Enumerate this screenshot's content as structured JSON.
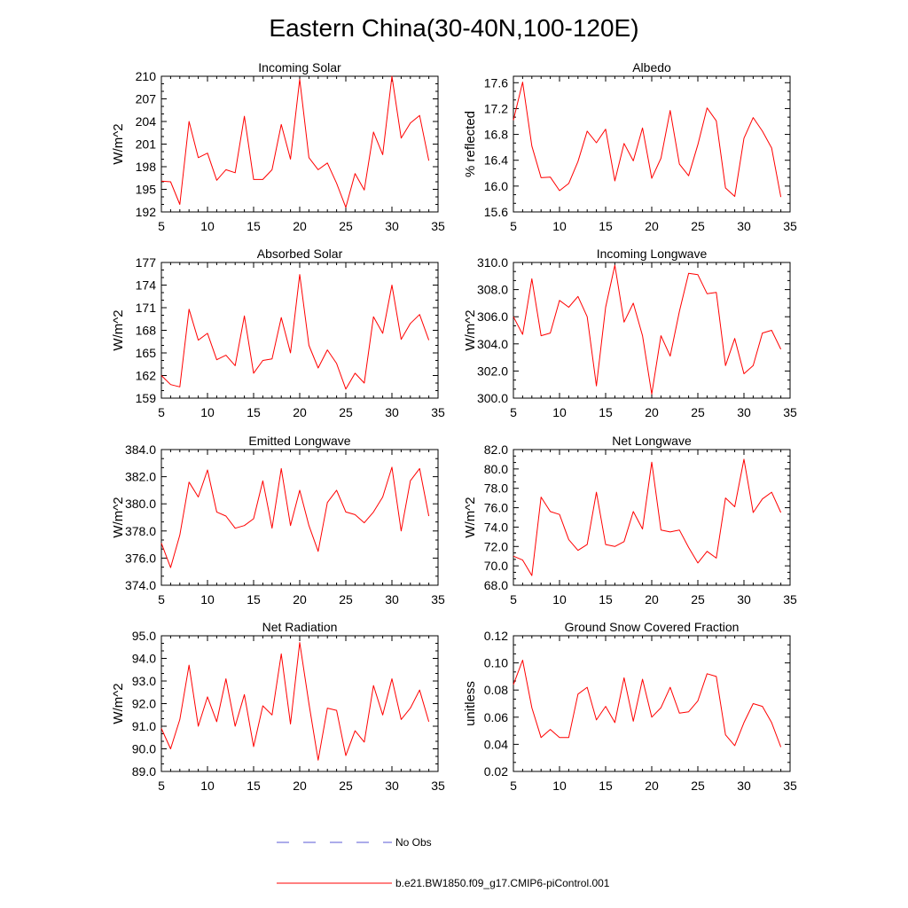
{
  "figure": {
    "title": "Eastern China(30-40N,100-120E)"
  },
  "legend": [
    {
      "label": "No Obs",
      "color": "#5a5ad6",
      "dash": true
    },
    {
      "label": "b.e21.BW1850.f09_g17.CMIP6-piControl.001",
      "color": "#ff0000",
      "dash": false
    }
  ],
  "chart_data": [
    {
      "type": "line",
      "title": "Incoming Solar",
      "ylabel": "W/m^2",
      "xlabel": "",
      "xlim": [
        5,
        35
      ],
      "ylim": [
        192,
        210
      ],
      "xticks": [
        5,
        10,
        15,
        20,
        25,
        30,
        35
      ],
      "yticks": [
        "192",
        "195",
        "198",
        "201",
        "204",
        "207",
        "210"
      ],
      "series": [
        {
          "name": "b.e21.BW1850.f09_g17.CMIP6-piControl.001",
          "x": [
            5,
            6,
            7,
            8,
            9,
            10,
            11,
            12,
            13,
            14,
            15,
            16,
            17,
            18,
            19,
            20,
            21,
            22,
            23,
            24,
            25,
            26,
            27,
            28,
            29,
            30,
            31,
            32,
            33,
            34
          ],
          "values": [
            196.1,
            196.0,
            193.0,
            204.0,
            199.2,
            199.8,
            196.2,
            197.6,
            197.2,
            204.7,
            196.3,
            196.3,
            197.6,
            203.6,
            199.0,
            209.6,
            199.2,
            197.6,
            198.5,
            195.8,
            192.6,
            197.1,
            194.9,
            202.6,
            199.6,
            210.0,
            201.8,
            203.8,
            204.8,
            198.8
          ]
        }
      ]
    },
    {
      "type": "line",
      "title": "Albedo",
      "ylabel": "% reflected",
      "xlabel": "",
      "xlim": [
        5,
        35
      ],
      "ylim": [
        15.6,
        17.7
      ],
      "xticks": [
        5,
        10,
        15,
        20,
        25,
        30,
        35
      ],
      "yticks": [
        "15.6",
        "16.0",
        "16.4",
        "16.8",
        "17.2",
        "17.6"
      ],
      "series": [
        {
          "name": "b.e21.BW1850.f09_g17.CMIP6-piControl.001",
          "x": [
            5,
            6,
            7,
            8,
            9,
            10,
            11,
            12,
            13,
            14,
            15,
            16,
            17,
            18,
            19,
            20,
            21,
            22,
            23,
            24,
            25,
            26,
            27,
            28,
            29,
            30,
            31,
            32,
            33,
            34
          ],
          "values": [
            17.02,
            17.61,
            16.62,
            16.13,
            16.14,
            15.93,
            16.04,
            16.38,
            16.85,
            16.67,
            16.88,
            16.08,
            16.66,
            16.39,
            16.9,
            16.12,
            16.43,
            17.17,
            16.34,
            16.16,
            16.64,
            17.21,
            17.01,
            15.97,
            15.84,
            16.74,
            17.06,
            16.85,
            16.59,
            15.83
          ]
        }
      ]
    },
    {
      "type": "line",
      "title": "Absorbed Solar",
      "ylabel": "W/m^2",
      "xlabel": "",
      "xlim": [
        5,
        35
      ],
      "ylim": [
        159,
        177
      ],
      "xticks": [
        5,
        10,
        15,
        20,
        25,
        30,
        35
      ],
      "yticks": [
        "159",
        "162",
        "165",
        "168",
        "171",
        "174",
        "177"
      ],
      "series": [
        {
          "name": "b.e21.BW1850.f09_g17.CMIP6-piControl.001",
          "x": [
            5,
            6,
            7,
            8,
            9,
            10,
            11,
            12,
            13,
            14,
            15,
            16,
            17,
            18,
            19,
            20,
            21,
            22,
            23,
            24,
            25,
            26,
            27,
            28,
            29,
            30,
            31,
            32,
            33,
            34
          ],
          "values": [
            162.0,
            160.8,
            160.5,
            170.8,
            166.7,
            167.6,
            164.1,
            164.7,
            163.3,
            169.9,
            162.3,
            164.0,
            164.2,
            169.7,
            165.0,
            175.4,
            166.0,
            163.0,
            165.4,
            163.6,
            160.2,
            162.3,
            161.0,
            169.8,
            167.6,
            174.0,
            166.8,
            168.9,
            170.1,
            166.7
          ]
        }
      ]
    },
    {
      "type": "line",
      "title": "Incoming Longwave",
      "ylabel": "W/m^2",
      "xlabel": "",
      "xlim": [
        5,
        35
      ],
      "ylim": [
        300.0,
        310.0
      ],
      "xticks": [
        5,
        10,
        15,
        20,
        25,
        30,
        35
      ],
      "yticks": [
        "300.0",
        "302.0",
        "304.0",
        "306.0",
        "308.0",
        "310.0"
      ],
      "series": [
        {
          "name": "b.e21.BW1850.f09_g17.CMIP6-piControl.001",
          "x": [
            5,
            6,
            7,
            8,
            9,
            10,
            11,
            12,
            13,
            14,
            15,
            16,
            17,
            18,
            19,
            20,
            21,
            22,
            23,
            24,
            25,
            26,
            27,
            28,
            29,
            30,
            31,
            32,
            33,
            34
          ],
          "values": [
            306.0,
            304.7,
            308.8,
            304.6,
            304.8,
            307.2,
            306.7,
            307.5,
            306.0,
            300.9,
            306.7,
            309.8,
            305.6,
            307.0,
            304.6,
            300.3,
            304.6,
            303.1,
            306.4,
            309.2,
            309.1,
            307.7,
            307.8,
            302.4,
            304.4,
            301.8,
            302.4,
            304.8,
            305.0,
            303.6
          ]
        }
      ]
    },
    {
      "type": "line",
      "title": "Emitted Longwave",
      "ylabel": "W/m^2",
      "xlabel": "",
      "xlim": [
        5,
        35
      ],
      "ylim": [
        374.0,
        384.0
      ],
      "xticks": [
        5,
        10,
        15,
        20,
        25,
        30,
        35
      ],
      "yticks": [
        "374.0",
        "376.0",
        "378.0",
        "380.0",
        "382.0",
        "384.0"
      ],
      "series": [
        {
          "name": "b.e21.BW1850.f09_g17.CMIP6-piControl.001",
          "x": [
            5,
            6,
            7,
            8,
            9,
            10,
            11,
            12,
            13,
            14,
            15,
            16,
            17,
            18,
            19,
            20,
            21,
            22,
            23,
            24,
            25,
            26,
            27,
            28,
            29,
            30,
            31,
            32,
            33,
            34
          ],
          "values": [
            377.1,
            375.3,
            377.7,
            381.6,
            380.5,
            382.5,
            379.4,
            379.1,
            378.2,
            378.4,
            378.9,
            381.7,
            378.2,
            382.6,
            378.4,
            381.0,
            378.4,
            376.5,
            380.1,
            381.0,
            379.4,
            379.2,
            378.6,
            379.4,
            380.5,
            382.7,
            378.0,
            381.7,
            382.6,
            379.1
          ]
        }
      ]
    },
    {
      "type": "line",
      "title": "Net Longwave",
      "ylabel": "W/m^2",
      "xlabel": "",
      "xlim": [
        5,
        35
      ],
      "ylim": [
        68.0,
        82.0
      ],
      "xticks": [
        5,
        10,
        15,
        20,
        25,
        30,
        35
      ],
      "yticks": [
        "68.0",
        "70.0",
        "72.0",
        "74.0",
        "76.0",
        "78.0",
        "80.0",
        "82.0"
      ],
      "series": [
        {
          "name": "b.e21.BW1850.f09_g17.CMIP6-piControl.001",
          "x": [
            5,
            6,
            7,
            8,
            9,
            10,
            11,
            12,
            13,
            14,
            15,
            16,
            17,
            18,
            19,
            20,
            21,
            22,
            23,
            24,
            25,
            26,
            27,
            28,
            29,
            30,
            31,
            32,
            33,
            34
          ],
          "values": [
            71.0,
            70.6,
            69.0,
            77.1,
            75.6,
            75.3,
            72.7,
            71.6,
            72.2,
            77.6,
            72.2,
            72.0,
            72.5,
            75.6,
            73.8,
            80.7,
            73.7,
            73.5,
            73.7,
            71.9,
            70.3,
            71.5,
            70.8,
            77.0,
            76.1,
            81.0,
            75.5,
            76.9,
            77.6,
            75.5
          ]
        }
      ]
    },
    {
      "type": "line",
      "title": "Net Radiation",
      "ylabel": "W/m^2",
      "xlabel": "",
      "xlim": [
        5,
        35
      ],
      "ylim": [
        89.0,
        95.0
      ],
      "xticks": [
        5,
        10,
        15,
        20,
        25,
        30,
        35
      ],
      "yticks": [
        "89.0",
        "90.0",
        "91.0",
        "92.0",
        "93.0",
        "94.0",
        "95.0"
      ],
      "series": [
        {
          "name": "b.e21.BW1850.f09_g17.CMIP6-piControl.001",
          "x": [
            5,
            6,
            7,
            8,
            9,
            10,
            11,
            12,
            13,
            14,
            15,
            16,
            17,
            18,
            19,
            20,
            21,
            22,
            23,
            24,
            25,
            26,
            27,
            28,
            29,
            30,
            31,
            32,
            33,
            34
          ],
          "values": [
            90.9,
            90.0,
            91.3,
            93.7,
            91.0,
            92.3,
            91.2,
            93.1,
            91.0,
            92.4,
            90.1,
            91.9,
            91.5,
            94.2,
            91.1,
            94.7,
            92.0,
            89.5,
            91.8,
            91.7,
            89.7,
            90.8,
            90.3,
            92.8,
            91.5,
            93.1,
            91.3,
            91.8,
            92.6,
            91.2
          ]
        }
      ]
    },
    {
      "type": "line",
      "title": "Ground Snow Covered Fraction",
      "ylabel": "unitless",
      "xlabel": "",
      "xlim": [
        5,
        35
      ],
      "ylim": [
        0.02,
        0.12
      ],
      "xticks": [
        5,
        10,
        15,
        20,
        25,
        30,
        35
      ],
      "yticks": [
        "0.02",
        "0.04",
        "0.06",
        "0.08",
        "0.10",
        "0.12"
      ],
      "series": [
        {
          "name": "b.e21.BW1850.f09_g17.CMIP6-piControl.001",
          "x": [
            5,
            6,
            7,
            8,
            9,
            10,
            11,
            12,
            13,
            14,
            15,
            16,
            17,
            18,
            19,
            20,
            21,
            22,
            23,
            24,
            25,
            26,
            27,
            28,
            29,
            30,
            31,
            32,
            33,
            34
          ],
          "values": [
            0.084,
            0.102,
            0.067,
            0.045,
            0.051,
            0.045,
            0.045,
            0.077,
            0.082,
            0.058,
            0.068,
            0.056,
            0.089,
            0.057,
            0.088,
            0.06,
            0.067,
            0.082,
            0.063,
            0.064,
            0.072,
            0.092,
            0.09,
            0.047,
            0.039,
            0.056,
            0.07,
            0.068,
            0.056,
            0.038
          ]
        }
      ]
    }
  ]
}
